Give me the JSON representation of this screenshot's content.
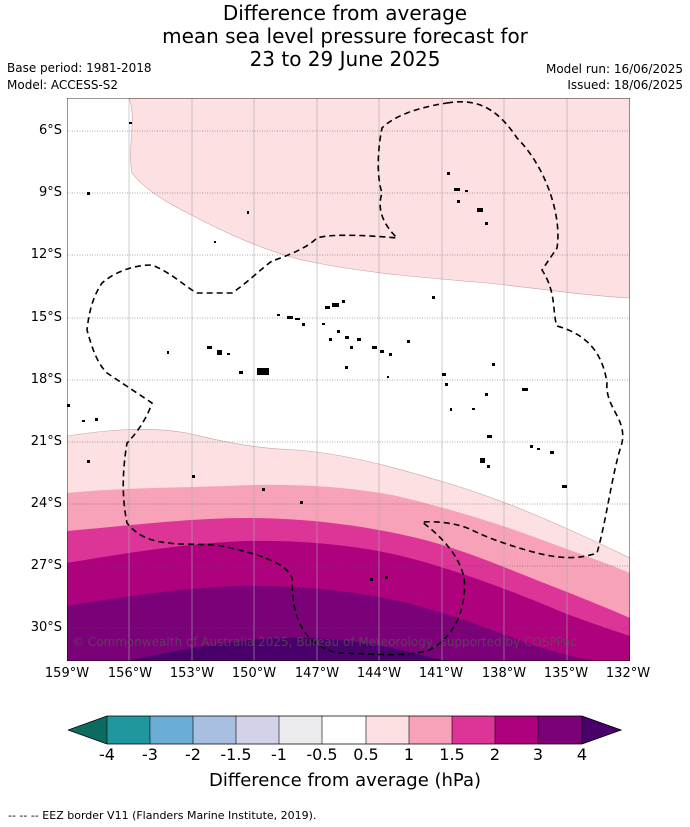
{
  "title": {
    "line1": "Difference from average",
    "line2": "mean sea level pressure forecast for",
    "line3": "23 to 29 June 2025"
  },
  "meta": {
    "base_period": "Base period: 1981-2018",
    "model": "Model: ACCESS-S2",
    "model_run": "Model run: 16/06/2025",
    "issued": "Issued: 18/06/2025"
  },
  "map": {
    "lat_labels": [
      "6°S",
      "9°S",
      "12°S",
      "15°S",
      "18°S",
      "21°S",
      "24°S",
      "27°S",
      "30°S"
    ],
    "lon_labels": [
      "159°W",
      "156°W",
      "153°W",
      "150°W",
      "147°W",
      "144°W",
      "141°W",
      "138°W",
      "135°W",
      "132°W"
    ],
    "copyright": "© Commonwealth of Australia 2025, Bureau of Meteorology, supported by COSPPac"
  },
  "colorbar": {
    "title": "Difference from average (hPa)",
    "ticks": [
      "-4",
      "-3",
      "-2",
      "-1.5",
      "-1",
      "-0.5",
      "0.5",
      "1",
      "1.5",
      "2",
      "3",
      "4"
    ],
    "colors": {
      "lt_neg4": "#0b6b5e",
      "neg4_neg3": "#20979e",
      "neg3_neg2": "#6aaed5",
      "neg2_neg1_5": "#a9bfe0",
      "neg1_5_neg1": "#d2d3e8",
      "neg1_neg0_5": "#ebebee",
      "neg0_5_0_5": "#ffffff",
      "p0_5_1": "#fde0e1",
      "p1_1_5": "#f8a2b9",
      "p1_5_2": "#dd3497",
      "p2_3": "#ae017e",
      "p3_4": "#7a0177",
      "gt_4": "#49006a"
    }
  },
  "footnote": "--  --  -- EEZ border V11 (Flanders Marine Institute, 2019)."
}
